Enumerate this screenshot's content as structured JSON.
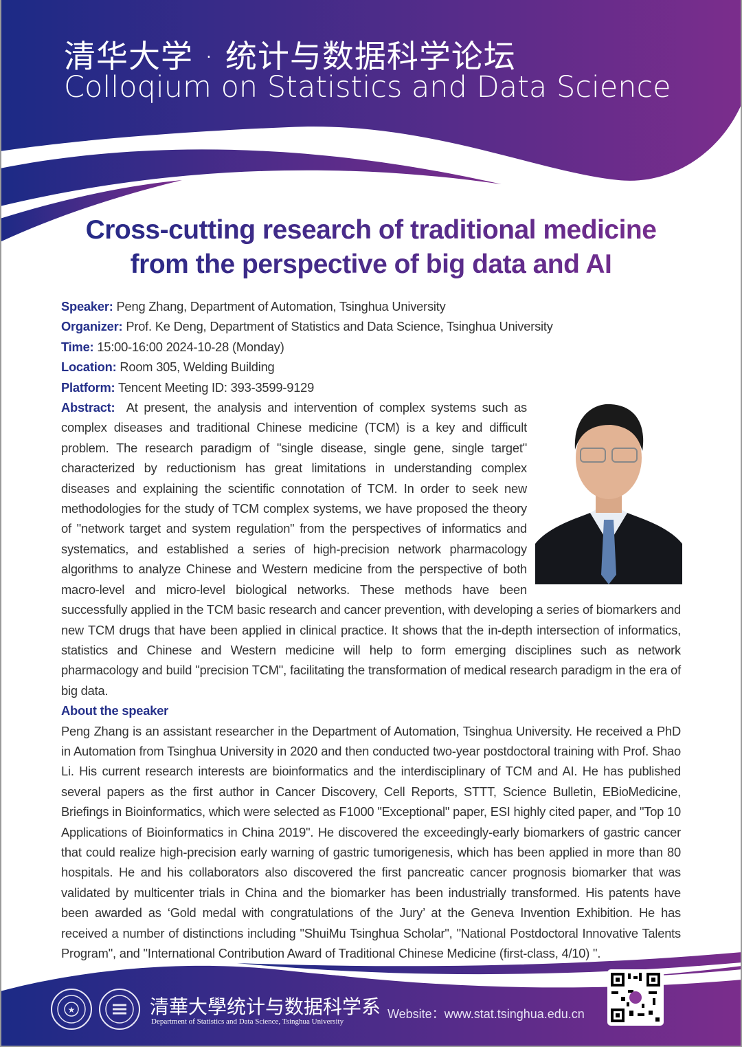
{
  "header": {
    "title_cn": "清华大学 · 统计与数据科学论坛",
    "title_en": "Colloqium on Statistics and Data Science"
  },
  "talk": {
    "title_line1": "Cross-cutting research of traditional medicine",
    "title_line2": "from the perspective of big data and AI"
  },
  "details": {
    "speaker_label": "Speaker:",
    "speaker": "Peng Zhang, Department of Automation, Tsinghua University",
    "organizer_label": "Organizer:",
    "organizer": "Prof. Ke Deng, Department of Statistics and Data Science, Tsinghua University",
    "time_label": "Time:",
    "time": "15:00-16:00 2024-10-28 (Monday)",
    "location_label": "Location:",
    "location": "Room 305, Welding Building",
    "platform_label": "Platform:",
    "platform": "Tencent Meeting ID: 393-3599-9129"
  },
  "abstract": {
    "label": "Abstract:",
    "text": "At present, the analysis and intervention of complex systems such as complex diseases and traditional Chinese medicine (TCM) is a key and difficult problem. The research paradigm of \"single disease, single gene, single target\" characterized by reductionism has great limitations in understanding complex diseases and explaining the scientific connotation of TCM. In order to seek new methodologies for the study of TCM complex systems, we have proposed the theory of \"network target and system regulation\" from the perspectives of informatics and systematics, and established a series of high-precision network pharmacology algorithms to analyze Chinese and Western medicine from the perspective of both macro-level and micro-level biological networks. These methods have been successfully applied in the TCM basic research and cancer prevention, with developing a series of biomarkers and new TCM drugs that have been applied in clinical practice. It shows that the in-depth intersection of informatics, statistics and Chinese and Western medicine will help to form emerging disciplines such as network pharmacology and build \"precision TCM\", facilitating the transformation of medical research paradigm in the era of big data."
  },
  "bio": {
    "heading": "About the speaker",
    "text": "Peng Zhang is an assistant researcher in the Department of Automation, Tsinghua University. He received a PhD in Automation from Tsinghua University in 2020 and then conducted two-year postdoctoral training with Prof. Shao Li. His current research interests are bioinformatics and the interdisciplinary of TCM and AI. He has published several papers as the first author in Cancer Discovery, Cell Reports, STTT, Science Bulletin, EBioMedicine, Briefings in Bioinformatics, which were selected as F1000 \"Exceptional\" paper, ESI highly cited paper, and \"Top 10 Applications of Bioinformatics in China 2019\". He discovered the exceedingly-early biomarkers of gastric cancer that could realize high-precision early warning of gastric tumorigenesis, which has been applied in more than 80 hospitals. He and his collaborators also discovered the first pancreatic cancer prognosis biomarker that was validated by multicenter trials in China and the biomarker has been industrially transformed. His patents have been awarded as ‘Gold medal with congratulations of the Jury’ at the Geneva Invention Exhibition. He has received a number of distinctions including \"ShuiMu Tsinghua Scholar\", \"National Postdoctoral Innovative Talents Program\", and \"International Contribution Award of Traditional Chinese Medicine (first-class, 4/10) \"."
  },
  "footer": {
    "dept_cn": "清華大學统计与数据科学系",
    "dept_en": "Department of Statistics and Data Science, Tsinghua University",
    "website": "Website：www.stat.tsinghua.edu.cn"
  },
  "colors": {
    "gradient_start": "#1c2a86",
    "gradient_end": "#7b2d8c",
    "label_blue": "#25308a"
  }
}
